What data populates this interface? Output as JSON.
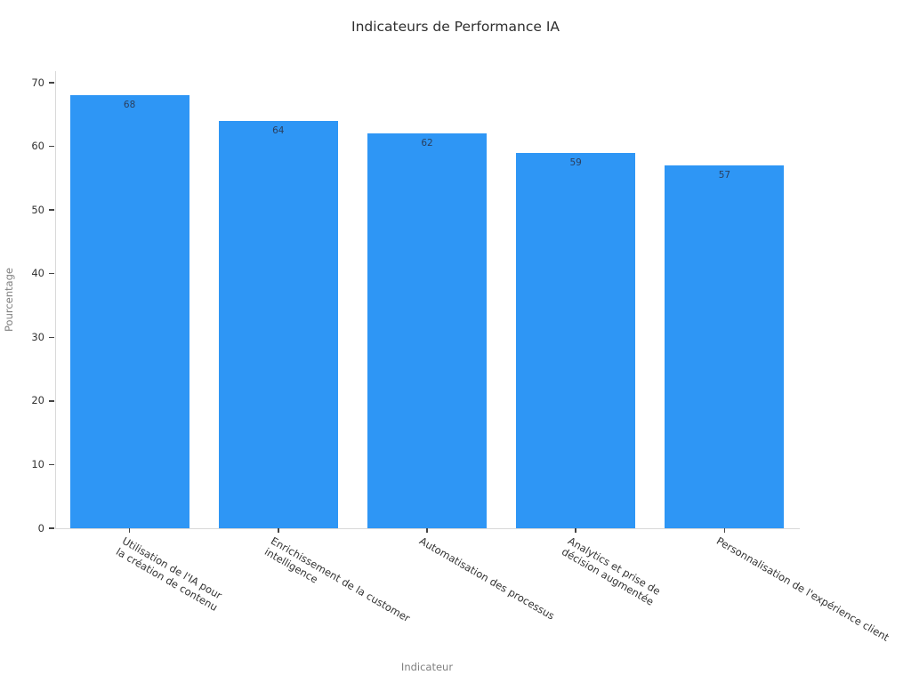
{
  "chart_data": {
    "type": "bar",
    "title": "Indicateurs de Performance IA",
    "xlabel": "Indicateur",
    "ylabel": "Pourcentage",
    "categories": [
      "Utilisation de l'IA pour\nla création de contenu",
      "Enrichissement de la customer\nintelligence",
      "Automatisation des processus",
      "Analytics et prise de\ndécision augmentée",
      "Personnalisation de l'expérience client"
    ],
    "values": [
      68,
      64,
      62,
      59,
      57
    ],
    "bar_labels": [
      "68",
      "64",
      "62",
      "59",
      "57"
    ],
    "ylim": [
      0,
      70
    ],
    "yticks": [
      0,
      10,
      20,
      30,
      40,
      50,
      60,
      70
    ],
    "grid": false,
    "legend": "none",
    "bar_label_position": "inside-top",
    "x_tick_angle_deg": 30,
    "colors": {
      "bar": "#2E96F5",
      "bar_label": "#2a3f5f",
      "axis_line": "#d9d9d9",
      "tick_mark": "#444444",
      "tick_label": "#333333",
      "axis_title": "#808080",
      "title": "#2f2f2f",
      "background": "#ffffff"
    }
  }
}
